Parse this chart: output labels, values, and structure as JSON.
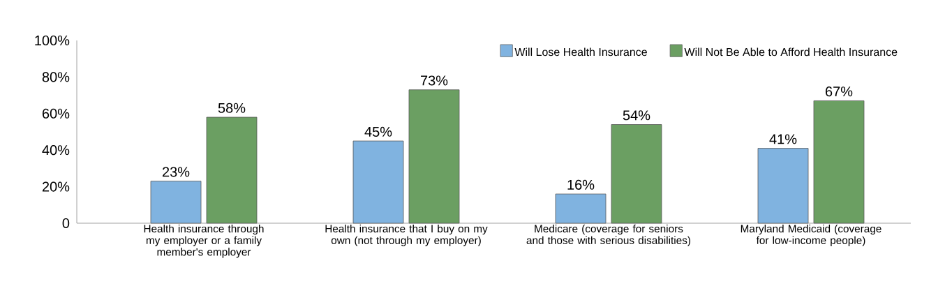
{
  "chart_data": {
    "type": "bar",
    "categories": [
      "Health insurance through my employer or a family member's employer",
      "Health insurance that I buy on my own (not through my employer)",
      "Medicare (coverage for seniors and those with serious disabilities)",
      "Maryland Medicaid (coverage for low-income people)"
    ],
    "series": [
      {
        "name": "Will Lose Health Insurance",
        "color": "#80b3e0",
        "values": [
          23,
          45,
          16,
          41
        ],
        "value_labels": [
          "23%",
          "45%",
          "16%",
          "41%"
        ]
      },
      {
        "name": "Will Not Be Able to Afford Health Insurance",
        "color": "#6b9f62",
        "values": [
          58,
          73,
          54,
          67
        ],
        "value_labels": [
          "58%",
          "73%",
          "54%",
          "67%"
        ]
      }
    ],
    "ylim": [
      0,
      100
    ],
    "yticks": [
      0,
      {
        "value": 20,
        "label": "20%"
      },
      {
        "value": 40,
        "label": "40%"
      },
      {
        "value": 60,
        "label": "60%"
      },
      {
        "value": 80,
        "label": "80%"
      },
      {
        "value": 100,
        "label": "100%"
      }
    ],
    "legend": "top right",
    "grid": false
  }
}
